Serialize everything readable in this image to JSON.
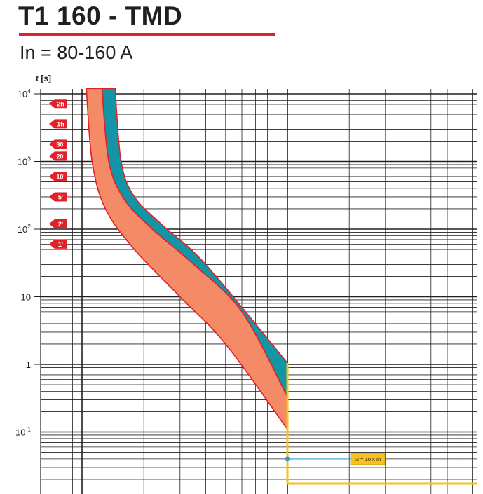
{
  "title": "T1 160 - TMD",
  "subtitle": "In = 80-160 A",
  "colors": {
    "title_bar": "#e2202a",
    "teal_band": "#1495a6",
    "orange_band": "#f58a66",
    "band_edge": "#e2202a",
    "instantaneous": "#f6c21b",
    "marker": "#2d9fd8",
    "time_tag": "#e2202a",
    "grid": "#231f20"
  },
  "chart_data": {
    "type": "area",
    "title": "T1 160 - TMD",
    "subtitle": "In = 80-160 A",
    "ylabel": "t [s]",
    "xlabel": "",
    "y_scale": "log",
    "ylim": [
      0.01,
      15000
    ],
    "y_ticks": [
      {
        "value": 10000,
        "base": "10",
        "exp": "4"
      },
      {
        "value": 1000,
        "base": "10",
        "exp": "3"
      },
      {
        "value": 100,
        "base": "10",
        "exp": "2"
      },
      {
        "value": 10,
        "base": "10",
        "exp": ""
      },
      {
        "value": 1,
        "base": "1",
        "exp": ""
      },
      {
        "value": 0.1,
        "base": "10",
        "exp": "-1"
      }
    ],
    "x_scale": "log",
    "x_unit": "x In",
    "xlim": [
      0.45,
      40
    ],
    "grid": true,
    "time_markers": [
      {
        "label": "2h",
        "seconds": 7200
      },
      {
        "label": "1h",
        "seconds": 3600
      },
      {
        "label": "30'",
        "seconds": 1800
      },
      {
        "label": "20'",
        "seconds": 1200
      },
      {
        "label": "10'",
        "seconds": 600
      },
      {
        "label": "5'",
        "seconds": 300
      },
      {
        "label": "2'",
        "seconds": 120
      },
      {
        "label": "1'",
        "seconds": 60
      }
    ],
    "series": [
      {
        "band": "teal",
        "lower": [
          [
            1.25,
            12000
          ],
          [
            1.35,
            1000
          ],
          [
            1.6,
            280
          ],
          [
            2.2,
            100
          ],
          [
            3.5,
            30
          ],
          [
            6,
            6
          ],
          [
            10,
            0.33
          ]
        ],
        "upper": [
          [
            1.45,
            12000
          ],
          [
            1.55,
            1000
          ],
          [
            1.8,
            300
          ],
          [
            2.5,
            110
          ],
          [
            4,
            30
          ],
          [
            10,
            1.05
          ]
        ]
      },
      {
        "band": "orange",
        "lower": [
          [
            1.05,
            12000
          ],
          [
            1.12,
            1000
          ],
          [
            1.3,
            200
          ],
          [
            1.8,
            50
          ],
          [
            3,
            10
          ],
          [
            5,
            2
          ],
          [
            10,
            0.11
          ]
        ],
        "upper": [
          [
            1.25,
            12000
          ],
          [
            1.35,
            1000
          ],
          [
            1.6,
            280
          ],
          [
            2.2,
            100
          ],
          [
            3.5,
            30
          ],
          [
            6,
            6
          ],
          [
            10,
            0.33
          ]
        ]
      }
    ],
    "instantaneous": {
      "x": 10,
      "t_top": 1.05,
      "t_bottom": 0.01,
      "x_end": 40,
      "marker_t": 0.04,
      "label": "I3 = 10 x In"
    }
  }
}
